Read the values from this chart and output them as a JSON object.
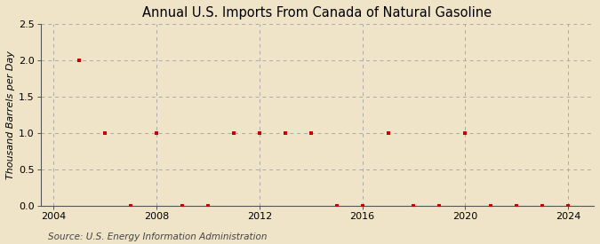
{
  "title": "Annual U.S. Imports From Canada of Natural Gasoline",
  "ylabel": "Thousand Barrels per Day",
  "source_text": "Source: U.S. Energy Information Administration",
  "background_color": "#f0e4c8",
  "plot_background_color": "#f0e4c8",
  "xlim": [
    2003.5,
    2025
  ],
  "ylim": [
    0.0,
    2.5
  ],
  "yticks": [
    0.0,
    0.5,
    1.0,
    1.5,
    2.0,
    2.5
  ],
  "xticks": [
    2004,
    2008,
    2012,
    2016,
    2020,
    2024
  ],
  "years": [
    2005,
    2006,
    2007,
    2008,
    2009,
    2010,
    2011,
    2012,
    2013,
    2014,
    2015,
    2016,
    2017,
    2018,
    2019,
    2020,
    2021,
    2022,
    2023,
    2024
  ],
  "values": [
    2.0,
    1.0,
    0.0,
    1.0,
    0.0,
    0.0,
    1.0,
    1.0,
    1.0,
    1.0,
    0.0,
    0.0,
    1.0,
    0.0,
    0.0,
    1.0,
    0.0,
    0.0,
    0.0,
    0.0
  ],
  "marker_color": "#cc0000",
  "marker_size": 3.5,
  "grid_color": "#aaaaaa",
  "title_fontsize": 10.5,
  "label_fontsize": 8,
  "tick_fontsize": 8,
  "source_fontsize": 7.5
}
